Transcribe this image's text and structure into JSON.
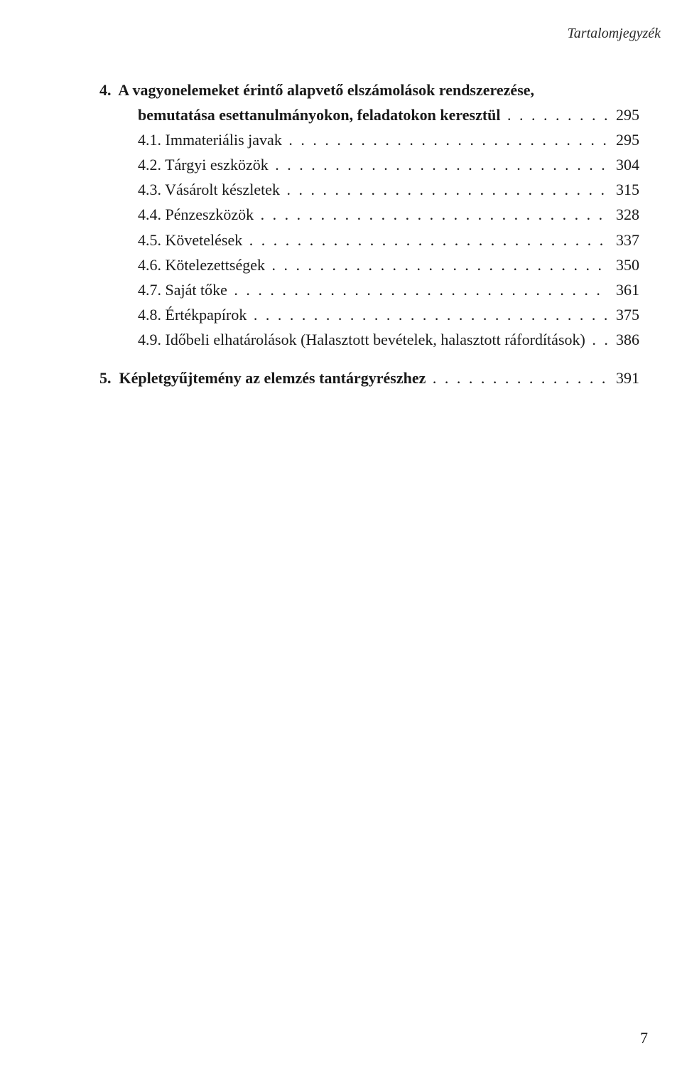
{
  "running_head": "Tartalomjegyzék",
  "section4": {
    "line1": "4.  A vagyonelemeket érintő alapvető elszámolások rendszerezése,",
    "line2": "bemutatása esettanulmányokon, feladatokon keresztül ",
    "page": "295"
  },
  "entries": [
    {
      "label": "4.1. Immateriális javak ",
      "page": "295"
    },
    {
      "label": "4.2. Tárgyi eszközök ",
      "page": "304"
    },
    {
      "label": "4.3. Vásárolt készletek ",
      "page": "315"
    },
    {
      "label": "4.4. Pénzeszközök ",
      "page": "328"
    },
    {
      "label": "4.5. Követelések ",
      "page": "337"
    },
    {
      "label": "4.6. Kötelezettségek ",
      "page": "350"
    },
    {
      "label": "4.7. Saját tőke ",
      "page": "361"
    },
    {
      "label": "4.8. Értékpapírok ",
      "page": "375"
    },
    {
      "label": "4.9. Időbeli elhatárolások (Halasztott bevételek, halasztott ráfordítások) ",
      "page": "386"
    }
  ],
  "section5": {
    "label": "5.  Képletgyűjtemény az elemzés tantárgyrészhez ",
    "page": "391"
  },
  "page_number": "7",
  "leader_char": ".",
  "colors": {
    "text": "#1a1a1a",
    "background": "#ffffff"
  },
  "fonts": {
    "family": "Times New Roman",
    "body_size_pt": 16,
    "running_head_size_pt": 15,
    "running_head_style": "italic",
    "section_weight": "bold"
  }
}
